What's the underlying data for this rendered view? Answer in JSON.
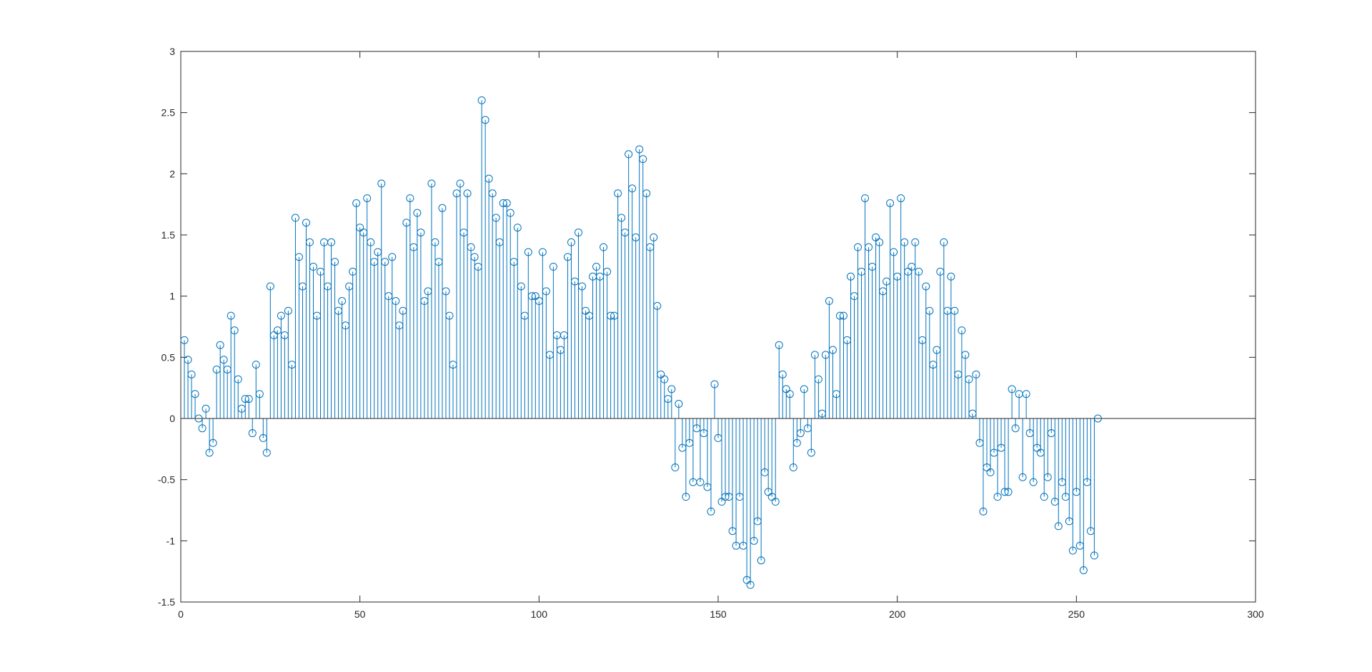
{
  "chart_data": {
    "type": "stem",
    "title": "",
    "xlabel": "",
    "ylabel": "",
    "xlim": [
      0,
      300
    ],
    "ylim": [
      -1.5,
      3
    ],
    "xticks": [
      0,
      50,
      100,
      150,
      200,
      250,
      300
    ],
    "yticks": [
      -1.5,
      -1,
      -0.5,
      0,
      0.5,
      1,
      1.5,
      2,
      2.5,
      3
    ],
    "xtick_labels": [
      "0",
      "50",
      "100",
      "150",
      "200",
      "250",
      "300"
    ],
    "ytick_labels": [
      "-1.5",
      "-1",
      "-0.5",
      "0",
      "0.5",
      "1",
      "1.5",
      "2",
      "2.5",
      "3"
    ],
    "grid": false,
    "baseline": 0,
    "series": [
      {
        "color": "#0072BD",
        "marker": "circle",
        "x_start": 1,
        "x_step": 1,
        "values": [
          0.64,
          0.48,
          0.36,
          0.2,
          0,
          -0.08,
          0.08,
          -0.28,
          -0.2,
          0.4,
          0.6,
          0.48,
          0.4,
          0.84,
          0.72,
          0.32,
          0.08,
          0.16,
          0.16,
          -0.12,
          0.44,
          0.2,
          -0.16,
          -0.28,
          1.08,
          0.68,
          0.72,
          0.84,
          0.68,
          0.88,
          0.44,
          1.64,
          1.32,
          1.08,
          1.6,
          1.44,
          1.24,
          0.84,
          1.2,
          1.44,
          1.08,
          1.44,
          1.28,
          0.88,
          0.96,
          0.76,
          1.08,
          1.2,
          1.76,
          1.56,
          1.52,
          1.8,
          1.44,
          1.28,
          1.36,
          1.92,
          1.28,
          1.0,
          1.32,
          0.96,
          0.76,
          0.88,
          1.6,
          1.8,
          1.4,
          1.68,
          1.52,
          0.96,
          1.04,
          1.92,
          1.44,
          1.28,
          1.72,
          1.04,
          0.84,
          0.44,
          1.84,
          1.92,
          1.52,
          1.84,
          1.4,
          1.32,
          1.24,
          2.6,
          2.44,
          1.96,
          1.84,
          1.64,
          1.44,
          1.76,
          1.76,
          1.68,
          1.28,
          1.56,
          1.08,
          0.84,
          1.36,
          1.0,
          1.0,
          0.96,
          1.36,
          1.04,
          0.52,
          1.24,
          0.68,
          0.56,
          0.68,
          1.32,
          1.44,
          1.12,
          1.52,
          1.08,
          0.88,
          0.84,
          1.16,
          1.24,
          1.16,
          1.4,
          1.2,
          0.84,
          0.84,
          1.84,
          1.64,
          1.52,
          2.16,
          1.88,
          1.48,
          2.2,
          2.12,
          1.84,
          1.4,
          1.48,
          0.92,
          0.36,
          0.32,
          0.16,
          0.24,
          -0.4,
          0.12,
          -0.24,
          -0.64,
          -0.2,
          -0.52,
          -0.08,
          -0.52,
          -0.12,
          -0.56,
          -0.76,
          0.28,
          -0.16,
          -0.68,
          -0.64,
          -0.64,
          -0.92,
          -1.04,
          -0.64,
          -1.04,
          -1.32,
          -1.36,
          -1.0,
          -0.84,
          -1.16,
          -0.44,
          -0.6,
          -0.64,
          -0.68,
          0.6,
          0.36,
          0.24,
          0.2,
          -0.4,
          -0.2,
          -0.12,
          0.24,
          -0.08,
          -0.28,
          0.52,
          0.32,
          0.04,
          0.52,
          0.96,
          0.56,
          0.2,
          0.84,
          0.84,
          0.64,
          1.16,
          1.0,
          1.4,
          1.2,
          1.8,
          1.4,
          1.24,
          1.48,
          1.44,
          1.04,
          1.12,
          1.76,
          1.36,
          1.16,
          1.8,
          1.44,
          1.2,
          1.24,
          1.44,
          1.2,
          0.64,
          1.08,
          0.88,
          0.44,
          0.56,
          1.2,
          1.44,
          0.88,
          1.16,
          0.88,
          0.36,
          0.72,
          0.52,
          0.32,
          0.04,
          0.36,
          -0.2,
          -0.76,
          -0.4,
          -0.44,
          -0.28,
          -0.64,
          -0.24,
          -0.6,
          -0.6,
          0.24,
          -0.08,
          0.2,
          -0.48,
          0.2,
          -0.12,
          -0.52,
          -0.24,
          -0.28,
          -0.64,
          -0.48,
          -0.12,
          -0.68,
          -0.88,
          -0.52,
          -0.64,
          -0.84,
          -1.08,
          -0.6,
          -1.04,
          -1.24,
          -0.52,
          -0.92,
          -1.12,
          0
        ]
      }
    ]
  }
}
